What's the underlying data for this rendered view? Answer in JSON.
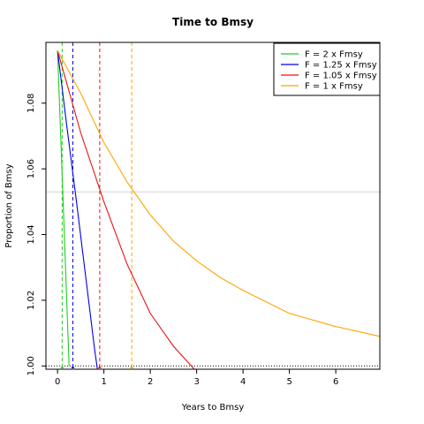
{
  "chart_data": {
    "type": "line",
    "title": "Time to Bmsy",
    "xlabel": "Years to Bmsy",
    "ylabel": "Proportion of Bmsy",
    "xlim": [
      -0.25,
      6.95
    ],
    "ylim": [
      0.999,
      1.0985
    ],
    "x_ticks": [
      0,
      1,
      2,
      3,
      4,
      5,
      6
    ],
    "x_tick_labels": [
      "0",
      "1",
      "2",
      "3",
      "4",
      "5",
      "6"
    ],
    "y_ticks": [
      1.0,
      1.02,
      1.04,
      1.06,
      1.08
    ],
    "y_tick_labels": [
      "1.00",
      "1.02",
      "1.04",
      "1.06",
      "1.08"
    ],
    "grid": false,
    "legend_position": "top-right",
    "start_value": 1.096,
    "series": [
      {
        "name": "F = 2 x Fmsy",
        "color": "#22cc22",
        "x": [
          0,
          0.05,
          0.1,
          0.15,
          0.2,
          0.25
        ],
        "y": [
          1.096,
          1.077,
          1.058,
          1.039,
          1.019,
          1.0
        ],
        "crossing_year": 0.1
      },
      {
        "name": "F = 1.25 x Fmsy",
        "color": "#0000ee",
        "x": [
          0,
          0.2,
          0.4,
          0.6,
          0.8,
          0.86
        ],
        "y": [
          1.096,
          1.073,
          1.051,
          1.028,
          1.005,
          0.999
        ],
        "crossing_year": 0.33
      },
      {
        "name": "F = 1.05 x Fmsy",
        "color": "#ee1111",
        "x": [
          0,
          0.5,
          1,
          1.5,
          2,
          2.5,
          2.95
        ],
        "y": [
          1.096,
          1.071,
          1.05,
          1.031,
          1.016,
          1.006,
          0.999
        ],
        "crossing_year": 0.91
      },
      {
        "name": "F = 1 x Fmsy",
        "color": "#ffa500",
        "x": [
          0,
          0.5,
          1,
          1.5,
          2,
          2.5,
          3,
          3.5,
          4,
          5,
          6,
          6.95
        ],
        "y": [
          1.096,
          1.083,
          1.068,
          1.056,
          1.046,
          1.038,
          1.032,
          1.027,
          1.023,
          1.016,
          1.012,
          1.009
        ],
        "crossing_year": 1.6
      }
    ],
    "reference_lines": {
      "horizontal": [
        {
          "y": 1.053,
          "color": "#d3d3d3",
          "style": "solid"
        },
        {
          "y": 1.0,
          "color": "#000000",
          "style": "dotted"
        }
      ]
    }
  }
}
